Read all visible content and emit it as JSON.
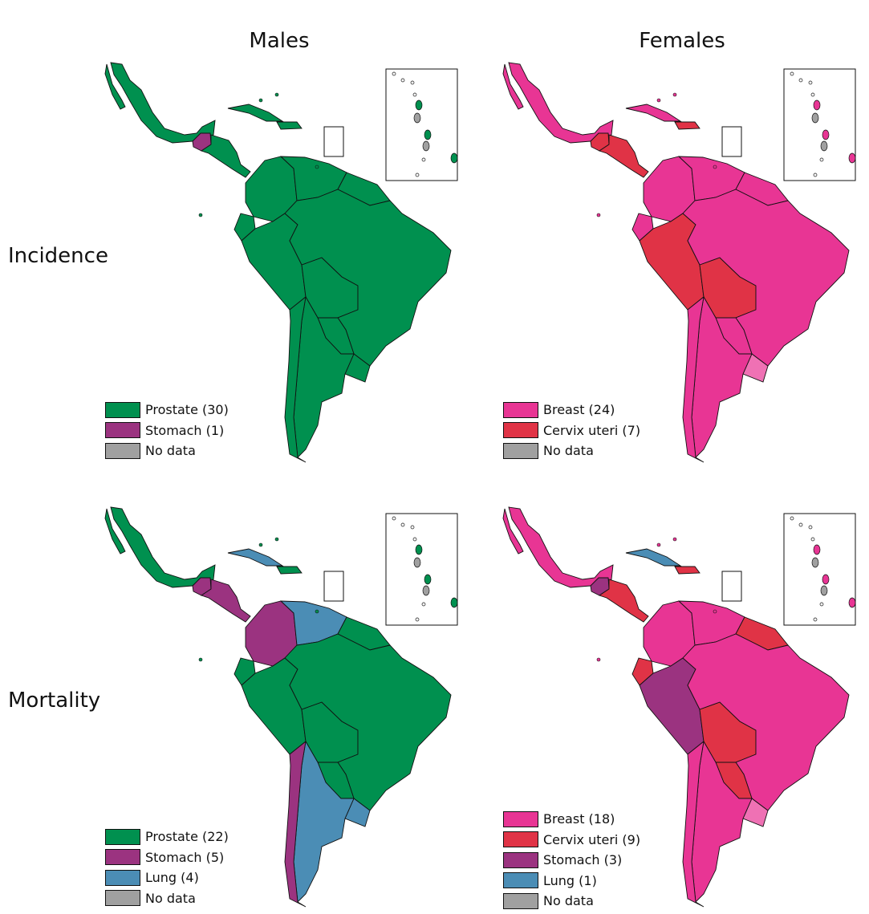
{
  "column_titles": [
    "Males",
    "Females"
  ],
  "row_titles": [
    "Incidence",
    "Mortality"
  ],
  "colors": {
    "Prostate": "#00904f",
    "Breast": "#e83594",
    "Cervix uteri": "#e03346",
    "Stomach": "#9b3380",
    "Lung": "#4b8db5",
    "No data": "#a0a0a0"
  },
  "panels": [
    {
      "sex": "Males",
      "measure": "Incidence",
      "legend": [
        {
          "key": "Prostate",
          "label": "Prostate (30)"
        },
        {
          "key": "Stomach",
          "label": "Stomach (1)"
        },
        {
          "key": "No data",
          "label": "No data"
        }
      ],
      "regions": {
        "default": "Prostate",
        "guatemala": "Stomach",
        "lesser_antilles_some": "No data"
      }
    },
    {
      "sex": "Females",
      "measure": "Incidence",
      "legend": [
        {
          "key": "Breast",
          "label": "Breast (24)"
        },
        {
          "key": "Cervix uteri",
          "label": "Cervix uteri (7)"
        },
        {
          "key": "No data",
          "label": "No data"
        }
      ],
      "regions": {
        "default": "Breast",
        "guatemala": "Cervix uteri",
        "central_america": "Cervix uteri",
        "hispaniola": "Cervix uteri",
        "peru": "Cervix uteri",
        "bolivia": "Cervix uteri",
        "lesser_antilles_some": "No data"
      }
    },
    {
      "sex": "Males",
      "measure": "Mortality",
      "legend": [
        {
          "key": "Prostate",
          "label": "Prostate (22)"
        },
        {
          "key": "Stomach",
          "label": "Stomach (5)"
        },
        {
          "key": "Lung",
          "label": "Lung (4)"
        },
        {
          "key": "No data",
          "label": "No data"
        }
      ],
      "regions": {
        "default": "Prostate",
        "guatemala": "Stomach",
        "central_america": "Stomach",
        "cuba": "Lung",
        "colombia": "Stomach",
        "venezuela": "Lung",
        "chile": "Stomach",
        "argentina": "Lung",
        "uruguay": "Lung",
        "lesser_antilles_some": "No data"
      }
    },
    {
      "sex": "Females",
      "measure": "Mortality",
      "legend": [
        {
          "key": "Breast",
          "label": "Breast (18)"
        },
        {
          "key": "Cervix uteri",
          "label": "Cervix uteri (9)"
        },
        {
          "key": "Stomach",
          "label": "Stomach (3)"
        },
        {
          "key": "Lung",
          "label": "Lung (1)"
        },
        {
          "key": "No data",
          "label": "No data"
        }
      ],
      "regions": {
        "default": "Breast",
        "guatemala": "Stomach",
        "central_america": "Cervix uteri",
        "cuba": "Lung",
        "hispaniola": "Cervix uteri",
        "guianas": "Cervix uteri",
        "ecuador": "Cervix uteri",
        "peru": "Stomach",
        "bolivia": "Cervix uteri",
        "paraguay": "Cervix uteri",
        "lesser_antilles_some": "No data"
      }
    }
  ]
}
